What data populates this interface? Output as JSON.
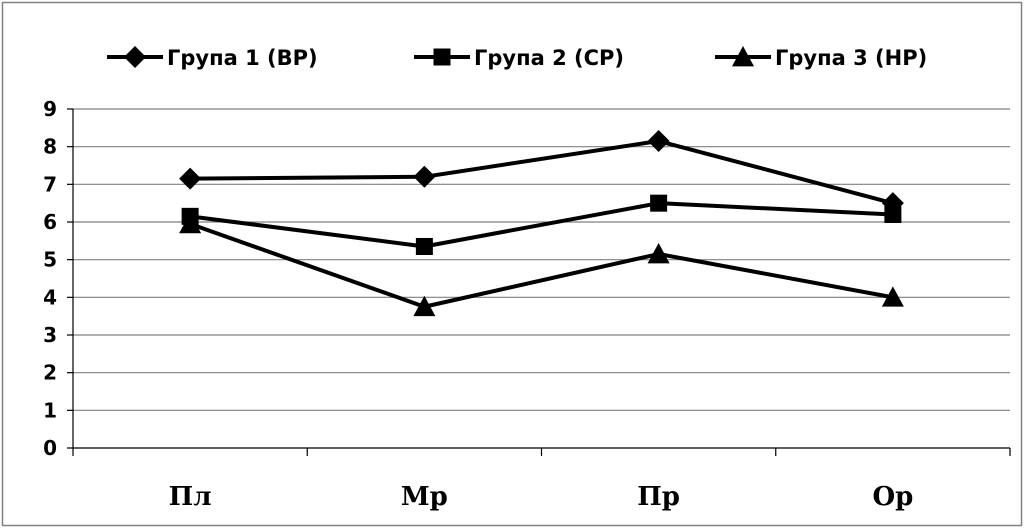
{
  "chart_data": {
    "type": "line",
    "categories": [
      "Пл",
      "Мр",
      "Пр",
      "Ор"
    ],
    "series": [
      {
        "name": "Група 1 (ВР)",
        "marker": "diamond",
        "values": [
          7.15,
          7.2,
          8.15,
          6.5
        ]
      },
      {
        "name": "Група 2 (СР)",
        "marker": "square",
        "values": [
          6.15,
          5.35,
          6.5,
          6.2
        ]
      },
      {
        "name": "Група 3 (НР)",
        "marker": "triangle",
        "values": [
          5.95,
          3.75,
          5.15,
          4.0
        ]
      }
    ],
    "ylim": [
      0,
      9
    ],
    "yticks": [
      0,
      1,
      2,
      3,
      4,
      5,
      6,
      7,
      8,
      9
    ],
    "grid": true,
    "legend_position": "top",
    "line_color": "#000000",
    "gridline_color": "#808080"
  }
}
